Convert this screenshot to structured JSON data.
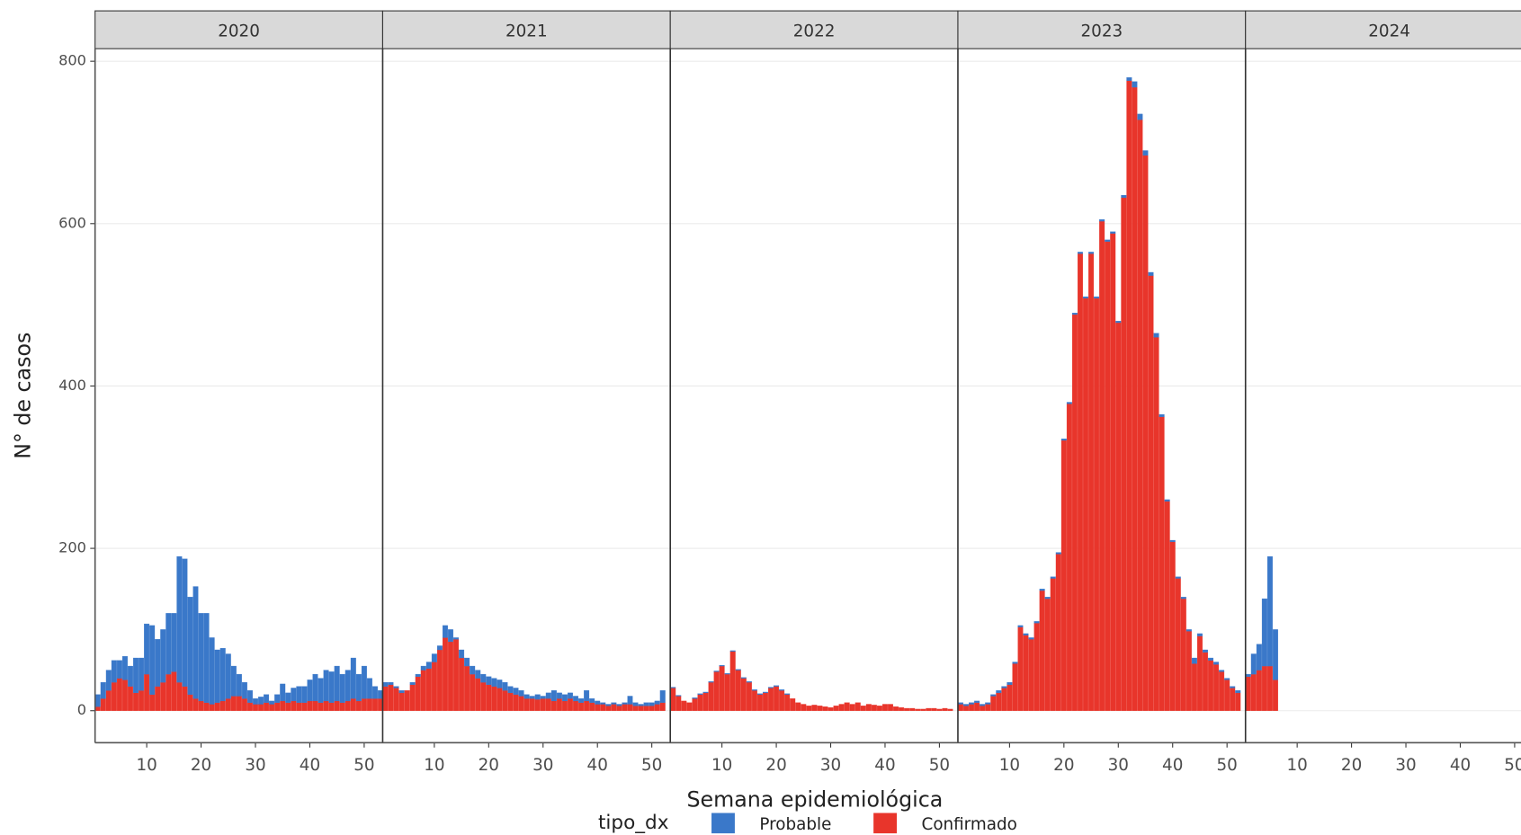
{
  "chart_data": {
    "type": "bar",
    "stacked": true,
    "x_label": "Semana epidemiológica",
    "y_label": "N° de casos",
    "legend_title": "tipo_dx",
    "facets": [
      "2020",
      "2021",
      "2022",
      "2023",
      "2024"
    ],
    "xlim": [
      0.5,
      53.4
    ],
    "xticks": [
      10,
      20,
      30,
      40,
      50
    ],
    "ylim": [
      -39.4,
      815.5
    ],
    "yticks": [
      0,
      200,
      400,
      600,
      800
    ],
    "grid": true,
    "x": [
      [
        1,
        2,
        3,
        4,
        5,
        6,
        7,
        8,
        9,
        10,
        11,
        12,
        13,
        14,
        15,
        16,
        17,
        18,
        19,
        20,
        21,
        22,
        23,
        24,
        25,
        26,
        27,
        28,
        29,
        30,
        31,
        32,
        33,
        34,
        35,
        36,
        37,
        38,
        39,
        40,
        41,
        42,
        43,
        44,
        45,
        46,
        47,
        48,
        49,
        50,
        51,
        52,
        53
      ],
      [
        1,
        2,
        3,
        4,
        5,
        6,
        7,
        8,
        9,
        10,
        11,
        12,
        13,
        14,
        15,
        16,
        17,
        18,
        19,
        20,
        21,
        22,
        23,
        24,
        25,
        26,
        27,
        28,
        29,
        30,
        31,
        32,
        33,
        34,
        35,
        36,
        37,
        38,
        39,
        40,
        41,
        42,
        43,
        44,
        45,
        46,
        47,
        48,
        49,
        50,
        51,
        52
      ],
      [
        1,
        2,
        3,
        4,
        5,
        6,
        7,
        8,
        9,
        10,
        11,
        12,
        13,
        14,
        15,
        16,
        17,
        18,
        19,
        20,
        21,
        22,
        23,
        24,
        25,
        26,
        27,
        28,
        29,
        30,
        31,
        32,
        33,
        34,
        35,
        36,
        37,
        38,
        39,
        40,
        41,
        42,
        43,
        44,
        45,
        46,
        47,
        48,
        49,
        50,
        51,
        52
      ],
      [
        1,
        2,
        3,
        4,
        5,
        6,
        7,
        8,
        9,
        10,
        11,
        12,
        13,
        14,
        15,
        16,
        17,
        18,
        19,
        20,
        21,
        22,
        23,
        24,
        25,
        26,
        27,
        28,
        29,
        30,
        31,
        32,
        33,
        34,
        35,
        36,
        37,
        38,
        39,
        40,
        41,
        42,
        43,
        44,
        45,
        46,
        47,
        48,
        49,
        50,
        51,
        52
      ],
      [
        1,
        2,
        3,
        4,
        5,
        6
      ]
    ],
    "series": [
      {
        "name": "Probable",
        "color": "#3a78c9",
        "values": [
          [
            15,
            20,
            25,
            27,
            22,
            29,
            25,
            43,
            40,
            62,
            85,
            58,
            65,
            75,
            72,
            155,
            157,
            120,
            138,
            108,
            110,
            82,
            65,
            65,
            55,
            37,
            27,
            20,
            15,
            7,
            9,
            10,
            4,
            10,
            21,
            12,
            16,
            20,
            20,
            26,
            33,
            30,
            38,
            38,
            43,
            35,
            38,
            50,
            33,
            40,
            25,
            15,
            10
          ],
          [
            5,
            3,
            2,
            3,
            0,
            3,
            3,
            5,
            8,
            10,
            5,
            15,
            15,
            2,
            10,
            10,
            10,
            10,
            10,
            10,
            10,
            10,
            10,
            8,
            8,
            7,
            5,
            3,
            6,
            3,
            7,
            13,
            7,
            8,
            7,
            6,
            5,
            13,
            5,
            4,
            2,
            2,
            2,
            2,
            2,
            10,
            4,
            2,
            4,
            4,
            4,
            15
          ],
          [
            1,
            1,
            0,
            0,
            1,
            1,
            1,
            1,
            1,
            1,
            1,
            1,
            1,
            1,
            1,
            1,
            1,
            1,
            1,
            1,
            1,
            1,
            0,
            0,
            0,
            0,
            0,
            0,
            0,
            0,
            0,
            0,
            0,
            0,
            0,
            0,
            0,
            0,
            0,
            0,
            0,
            0,
            0,
            0,
            0,
            0,
            0,
            0,
            0,
            0,
            0,
            0
          ],
          [
            2,
            2,
            2,
            2,
            2,
            2,
            2,
            3,
            2,
            3,
            2,
            2,
            2,
            2,
            2,
            2,
            2,
            2,
            2,
            2,
            2,
            2,
            2,
            2,
            2,
            2,
            2,
            2,
            2,
            2,
            3,
            4,
            7,
            7,
            6,
            4,
            5,
            3,
            2,
            2,
            2,
            2,
            2,
            7,
            3,
            3,
            3,
            3,
            2,
            2,
            2,
            3
          ],
          [
            3,
            25,
            32,
            83,
            135,
            62
          ]
        ]
      },
      {
        "name": "Confirmado",
        "color": "#e8352b",
        "values": [
          [
            5,
            15,
            25,
            35,
            40,
            38,
            30,
            22,
            25,
            45,
            20,
            30,
            35,
            45,
            48,
            35,
            30,
            20,
            15,
            12,
            10,
            8,
            10,
            12,
            15,
            18,
            18,
            15,
            10,
            8,
            8,
            10,
            8,
            10,
            12,
            10,
            12,
            10,
            10,
            12,
            12,
            10,
            12,
            10,
            12,
            10,
            12,
            15,
            12,
            15,
            15,
            15,
            15
          ],
          [
            30,
            32,
            28,
            22,
            25,
            32,
            42,
            50,
            52,
            60,
            75,
            90,
            85,
            88,
            65,
            55,
            45,
            40,
            35,
            32,
            30,
            28,
            25,
            22,
            20,
            18,
            15,
            15,
            14,
            15,
            15,
            12,
            15,
            12,
            15,
            12,
            10,
            12,
            10,
            8,
            8,
            6,
            8,
            6,
            8,
            8,
            6,
            6,
            6,
            6,
            8,
            10
          ],
          [
            28,
            18,
            12,
            10,
            15,
            20,
            22,
            35,
            48,
            55,
            45,
            73,
            50,
            40,
            35,
            25,
            20,
            22,
            28,
            30,
            25,
            20,
            15,
            10,
            8,
            6,
            7,
            6,
            5,
            4,
            6,
            8,
            10,
            8,
            10,
            6,
            8,
            7,
            6,
            8,
            8,
            5,
            4,
            3,
            3,
            2,
            2,
            3,
            3,
            2,
            3,
            2
          ],
          [
            8,
            6,
            8,
            10,
            6,
            8,
            18,
            22,
            28,
            32,
            58,
            103,
            93,
            88,
            108,
            148,
            138,
            163,
            193,
            333,
            378,
            488,
            563,
            508,
            563,
            508,
            603,
            578,
            588,
            478,
            632,
            776,
            768,
            728,
            684,
            536,
            460,
            362,
            258,
            208,
            163,
            138,
            98,
            58,
            92,
            72,
            62,
            57,
            48,
            38,
            28,
            22
          ],
          [
            42,
            45,
            50,
            55,
            55,
            38
          ]
        ]
      }
    ]
  }
}
